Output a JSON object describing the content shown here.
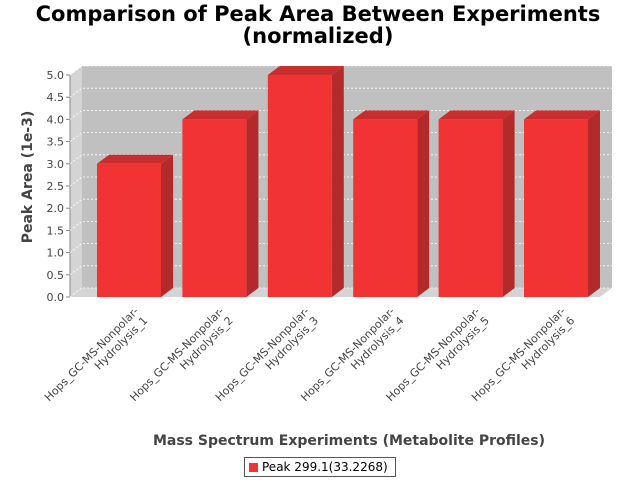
{
  "chart_data": {
    "type": "bar",
    "title_lines": [
      "Comparison of Peak Area Between Experiments",
      "(normalized)"
    ],
    "xlabel": "Mass Spectrum Experiments (Metabolite Profiles)",
    "ylabel": "Peak Area (1e-3)",
    "categories": [
      [
        "Hops_GC-MS-Nonpolar-",
        "Hydrolysis_1"
      ],
      [
        "Hops_GC-MS-Nonpolar-",
        "Hydrolysis_2"
      ],
      [
        "Hops_GC-MS-Nonpolar-",
        "Hydrolysis_3"
      ],
      [
        "Hops_GC-MS-Nonpolar-",
        "Hydrolysis_4"
      ],
      [
        "Hops_GC-MS-Nonpolar-",
        "Hydrolysis_5"
      ],
      [
        "Hops_GC-MS-Nonpolar-",
        "Hydrolysis_6"
      ]
    ],
    "series": [
      {
        "name": "Peak 299.1(33.2268)",
        "values": [
          3.0,
          4.0,
          5.0,
          4.0,
          4.0,
          4.0
        ]
      }
    ],
    "ylim": [
      0,
      5.0
    ],
    "yticks": [
      "0.0",
      "0.5",
      "1.0",
      "1.5",
      "2.0",
      "2.5",
      "3.0",
      "3.5",
      "4.0",
      "4.5",
      "5.0"
    ],
    "grid": true,
    "legend_position": "bottom",
    "colors": {
      "bar_front": "#f23333",
      "bar_side": "#b22a2a",
      "bar_top": "#c92e2e",
      "plot_back": "#c0c0c0",
      "plot_wall": "#d4d4d4"
    }
  }
}
